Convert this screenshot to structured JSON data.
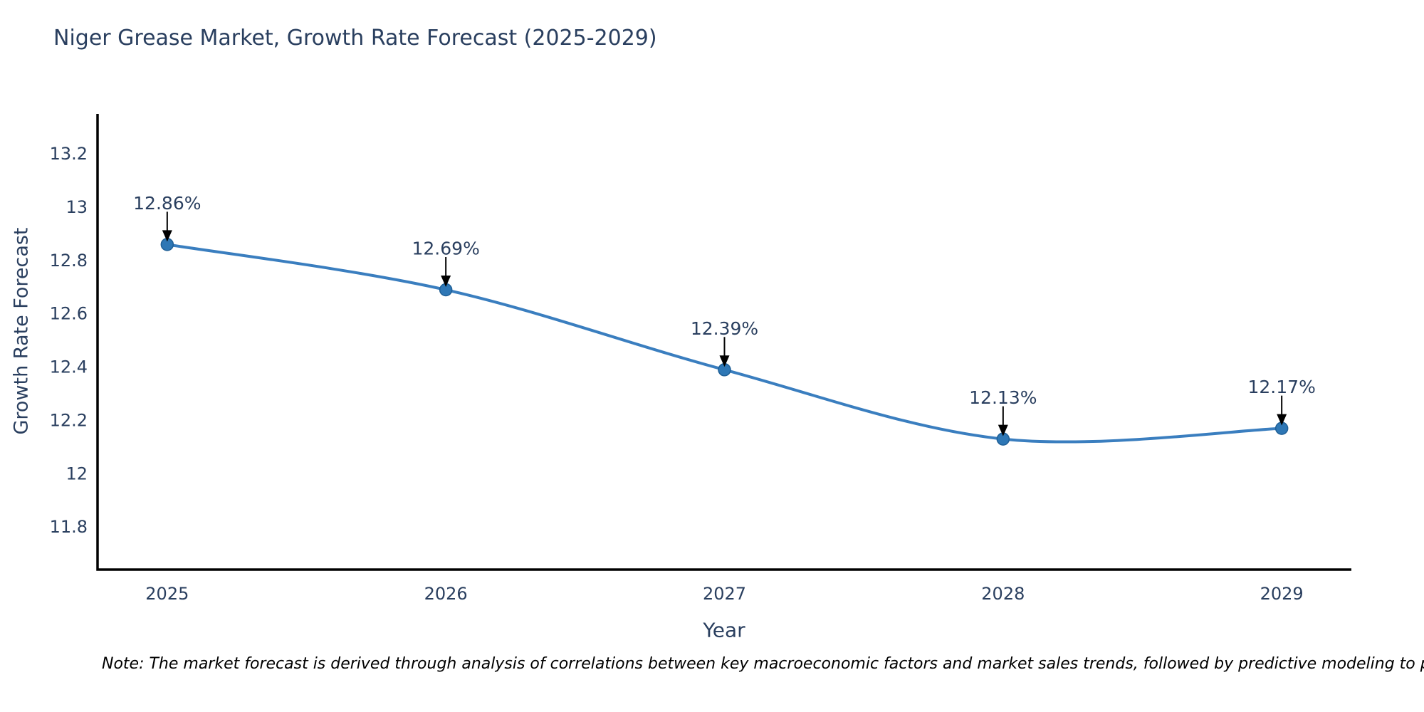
{
  "chart_data": {
    "type": "line",
    "title": "Niger Grease Market, Growth Rate Forecast (2025-2029)",
    "xlabel": "Year",
    "ylabel": "Growth Rate Forecast",
    "x": [
      2025,
      2026,
      2027,
      2028,
      2029
    ],
    "y": [
      12.86,
      12.69,
      12.39,
      12.13,
      12.17
    ],
    "annotations": [
      "12.86%",
      "12.69%",
      "12.39%",
      "12.13%",
      "12.17%"
    ],
    "xticks": [
      2025,
      2026,
      2027,
      2028,
      2029
    ],
    "yticks": [
      11.8,
      12,
      12.2,
      12.4,
      12.6,
      12.8,
      13,
      13.2
    ],
    "xlim": [
      2024.75,
      2029.25
    ],
    "ylim": [
      11.64,
      13.35
    ],
    "grid": false,
    "legend_position": "none",
    "line_shape": "spline",
    "line_color": "#3a7ebf",
    "marker_color": "#2e77b5",
    "marker_edge_color": "#1f5f96",
    "arrow_color": "#000000",
    "axis_color": "#000000",
    "text_color": "#2a3f5f"
  },
  "note": {
    "text": "Note: The market forecast is derived through analysis of correlations between key macroeconomic factors and market sales trends, followed by predictive modeling to project future sales."
  }
}
